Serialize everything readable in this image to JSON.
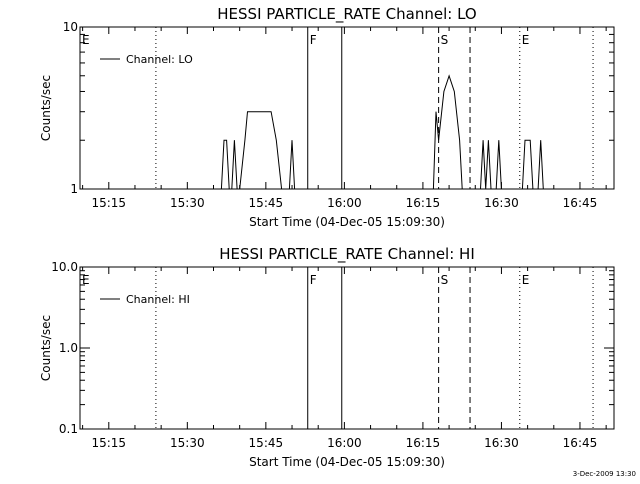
{
  "chart_data": [
    {
      "type": "line",
      "title": "HESSI PARTICLE_RATE Channel: LO",
      "xlabel": "Start Time (04-Dec-05 15:09:30)",
      "ylabel": "Counts/sec",
      "x_unit": "time of day",
      "xlim": [
        "15:09:30",
        "16:51:30"
      ],
      "ylim": [
        1,
        10
      ],
      "yscale": "log",
      "ytick_labels": [
        "1",
        "10"
      ],
      "xtick_labels": [
        "15:15",
        "15:30",
        "15:45",
        "16:00",
        "16:15",
        "16:30",
        "16:45"
      ],
      "grid": false,
      "legend": {
        "position": "top-left",
        "entries": [
          "Channel: LO"
        ]
      },
      "series": [
        {
          "name": "Channel: LO",
          "points": [
            [
              "15:36:30",
              1
            ],
            [
              "15:37:00",
              2
            ],
            [
              "15:37:30",
              2
            ],
            [
              "15:38:00",
              1
            ],
            [
              "15:38:30",
              1
            ],
            [
              "15:39:00",
              2
            ],
            [
              "15:39:30",
              1
            ],
            [
              "15:40:00",
              1
            ],
            [
              "15:41:00",
              2
            ],
            [
              "15:41:30",
              3
            ],
            [
              "15:46:00",
              3
            ],
            [
              "15:47:00",
              2
            ],
            [
              "15:48:00",
              1
            ],
            [
              "15:49:30",
              1
            ],
            [
              "15:50:00",
              2
            ],
            [
              "15:50:30",
              1
            ],
            [
              "16:17:00",
              1
            ],
            [
              "16:17:30",
              3
            ],
            [
              "16:18:00",
              2
            ],
            [
              "16:19:00",
              4
            ],
            [
              "16:20:00",
              5
            ],
            [
              "16:21:00",
              4
            ],
            [
              "16:22:00",
              2
            ],
            [
              "16:22:30",
              1
            ],
            [
              "16:26:00",
              1
            ],
            [
              "16:26:30",
              2
            ],
            [
              "16:27:00",
              1
            ],
            [
              "16:27:30",
              2
            ],
            [
              "16:28:00",
              1
            ],
            [
              "16:29:00",
              1
            ],
            [
              "16:29:30",
              2
            ],
            [
              "16:30:00",
              1
            ],
            [
              "16:34:00",
              1
            ],
            [
              "16:34:30",
              2
            ],
            [
              "16:35:30",
              2
            ],
            [
              "16:36:00",
              1
            ],
            [
              "16:37:00",
              1
            ],
            [
              "16:37:30",
              2
            ],
            [
              "16:38:00",
              1
            ]
          ]
        }
      ],
      "markers": [
        {
          "label": "E",
          "time": "15:09:30",
          "style": "none"
        },
        {
          "label": "",
          "time": "15:24:00",
          "style": "dotted"
        },
        {
          "label": "F",
          "time": "15:53:00",
          "style": "solid"
        },
        {
          "label": "",
          "time": "15:59:30",
          "style": "solid"
        },
        {
          "label": "S",
          "time": "16:18:00",
          "style": "dashed"
        },
        {
          "label": "",
          "time": "16:24:00",
          "style": "dashed"
        },
        {
          "label": "E",
          "time": "16:33:30",
          "style": "dotted"
        },
        {
          "label": "",
          "time": "16:47:30",
          "style": "dotted"
        }
      ]
    },
    {
      "type": "line",
      "title": "HESSI PARTICLE_RATE Channel: HI",
      "xlabel": "Start Time (04-Dec-05 15:09:30)",
      "ylabel": "Counts/sec",
      "x_unit": "time of day",
      "xlim": [
        "15:09:30",
        "16:51:30"
      ],
      "ylim": [
        0.1,
        10
      ],
      "yscale": "log",
      "ytick_labels": [
        "0.1",
        "1.0",
        "10.0"
      ],
      "xtick_labels": [
        "15:15",
        "15:30",
        "15:45",
        "16:00",
        "16:15",
        "16:30",
        "16:45"
      ],
      "grid": false,
      "legend": {
        "position": "top-left",
        "entries": [
          "Channel: HI"
        ]
      },
      "series": [
        {
          "name": "Channel: HI",
          "points": []
        }
      ],
      "markers": [
        {
          "label": "E",
          "time": "15:09:30",
          "style": "none"
        },
        {
          "label": "",
          "time": "15:24:00",
          "style": "dotted"
        },
        {
          "label": "F",
          "time": "15:53:00",
          "style": "solid"
        },
        {
          "label": "",
          "time": "15:59:30",
          "style": "solid"
        },
        {
          "label": "S",
          "time": "16:18:00",
          "style": "dashed"
        },
        {
          "label": "",
          "time": "16:24:00",
          "style": "dashed"
        },
        {
          "label": "E",
          "time": "16:33:30",
          "style": "dotted"
        },
        {
          "label": "",
          "time": "16:47:30",
          "style": "dotted"
        }
      ]
    }
  ],
  "footer_timestamp": "3-Dec-2009 13:30"
}
